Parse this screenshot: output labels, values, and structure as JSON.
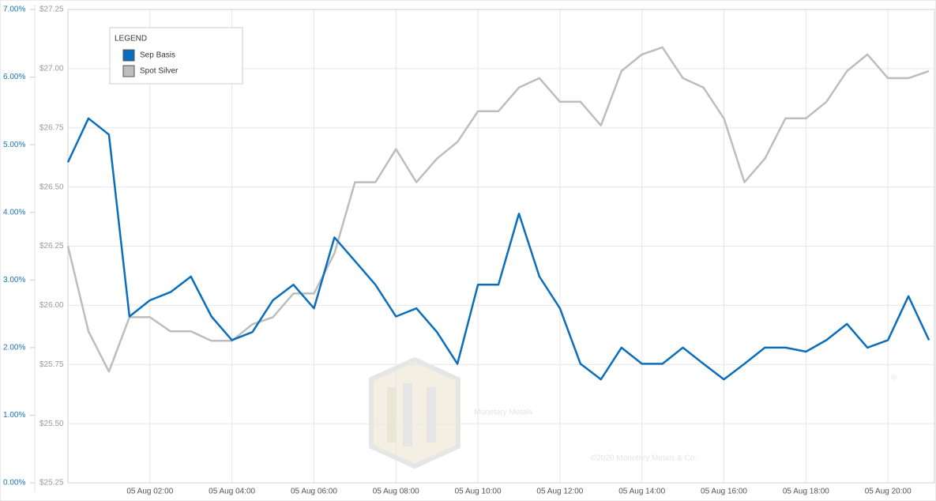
{
  "chart_data": {
    "type": "line",
    "legend_title": "LEGEND",
    "legend": "upper-left",
    "grid": true,
    "watermark": {
      "name": "Monetary Metals",
      "mark": "®",
      "copyright": "©2020 Monetary Metals & Co."
    },
    "x": [
      "05 Aug 00:00",
      "05 Aug 00:30",
      "05 Aug 01:00",
      "05 Aug 01:30",
      "05 Aug 02:00",
      "05 Aug 02:30",
      "05 Aug 03:00",
      "05 Aug 03:30",
      "05 Aug 04:00",
      "05 Aug 04:30",
      "05 Aug 05:00",
      "05 Aug 05:30",
      "05 Aug 06:00",
      "05 Aug 06:30",
      "05 Aug 07:00",
      "05 Aug 07:30",
      "05 Aug 08:00",
      "05 Aug 08:30",
      "05 Aug 09:00",
      "05 Aug 09:30",
      "05 Aug 10:00",
      "05 Aug 10:30",
      "05 Aug 11:00",
      "05 Aug 11:30",
      "05 Aug 12:00",
      "05 Aug 12:30",
      "05 Aug 13:00",
      "05 Aug 13:30",
      "05 Aug 14:00",
      "05 Aug 14:30",
      "05 Aug 15:00",
      "05 Aug 15:30",
      "05 Aug 16:00",
      "05 Aug 16:30",
      "05 Aug 17:00",
      "05 Aug 17:30",
      "05 Aug 18:00",
      "05 Aug 18:30",
      "05 Aug 19:00",
      "05 Aug 19:30",
      "05 Aug 20:00",
      "05 Aug 20:30",
      "05 Aug 21:00"
    ],
    "xlim": [
      "05 Aug 00:00",
      "05 Aug 21:08"
    ],
    "xticks": [
      "05 Aug 02:00",
      "05 Aug 04:00",
      "05 Aug 06:00",
      "05 Aug 08:00",
      "05 Aug 10:00",
      "05 Aug 12:00",
      "05 Aug 14:00",
      "05 Aug 16:00",
      "05 Aug 18:00",
      "05 Aug 20:00"
    ],
    "ylim": [
      0,
      7
    ],
    "yticks": [
      {
        "value": 0,
        "label": "0.00%"
      },
      {
        "value": 1,
        "label": "1.00%"
      },
      {
        "value": 2,
        "label": "2.00%"
      },
      {
        "value": 3,
        "label": "3.00%"
      },
      {
        "value": 4,
        "label": "4.00%"
      },
      {
        "value": 5,
        "label": "5.00%"
      },
      {
        "value": 6,
        "label": "6.00%"
      },
      {
        "value": 7,
        "label": "7.00%"
      }
    ],
    "y2lim": [
      25.25,
      27.25
    ],
    "y2ticks": [
      {
        "value": 25.25,
        "label": "$25.25"
      },
      {
        "value": 25.5,
        "label": "$25.50"
      },
      {
        "value": 25.75,
        "label": "$25.75"
      },
      {
        "value": 26,
        "label": "$26.00"
      },
      {
        "value": 26.25,
        "label": "$26.25"
      },
      {
        "value": 26.5,
        "label": "$26.50"
      },
      {
        "value": 26.75,
        "label": "$26.75"
      },
      {
        "value": 27,
        "label": "$27.00"
      },
      {
        "value": 27.25,
        "label": "$27.25"
      }
    ],
    "series": [
      {
        "name": "Spot Silver",
        "color": "#bdbdbd",
        "axis": "y2",
        "values": [
          26.25,
          25.89,
          25.72,
          25.95,
          25.95,
          25.89,
          25.89,
          25.85,
          25.85,
          25.92,
          25.95,
          26.05,
          26.05,
          26.22,
          26.52,
          26.52,
          26.66,
          26.52,
          26.62,
          26.69,
          26.82,
          26.82,
          26.92,
          26.96,
          26.86,
          26.86,
          26.76,
          26.99,
          27.06,
          27.09,
          26.96,
          26.92,
          26.79,
          26.52,
          26.62,
          26.79,
          26.79,
          26.86,
          26.99,
          27.06,
          26.96,
          26.96,
          26.99
        ]
      },
      {
        "name": "Sep Basis",
        "color": "#0a6ebd",
        "values": [
          4.74,
          5.39,
          5.15,
          2.46,
          2.7,
          2.82,
          3.05,
          2.46,
          2.11,
          2.23,
          2.7,
          2.93,
          2.58,
          3.63,
          3.28,
          2.93,
          2.46,
          2.58,
          2.23,
          1.76,
          2.93,
          2.93,
          3.98,
          3.05,
          2.58,
          1.76,
          1.53,
          2.0,
          1.76,
          1.76,
          2.0,
          1.76,
          1.53,
          1.76,
          2.0,
          2.0,
          1.94,
          2.11,
          2.35,
          2.0,
          2.11,
          2.76,
          2.11
        ]
      }
    ]
  }
}
